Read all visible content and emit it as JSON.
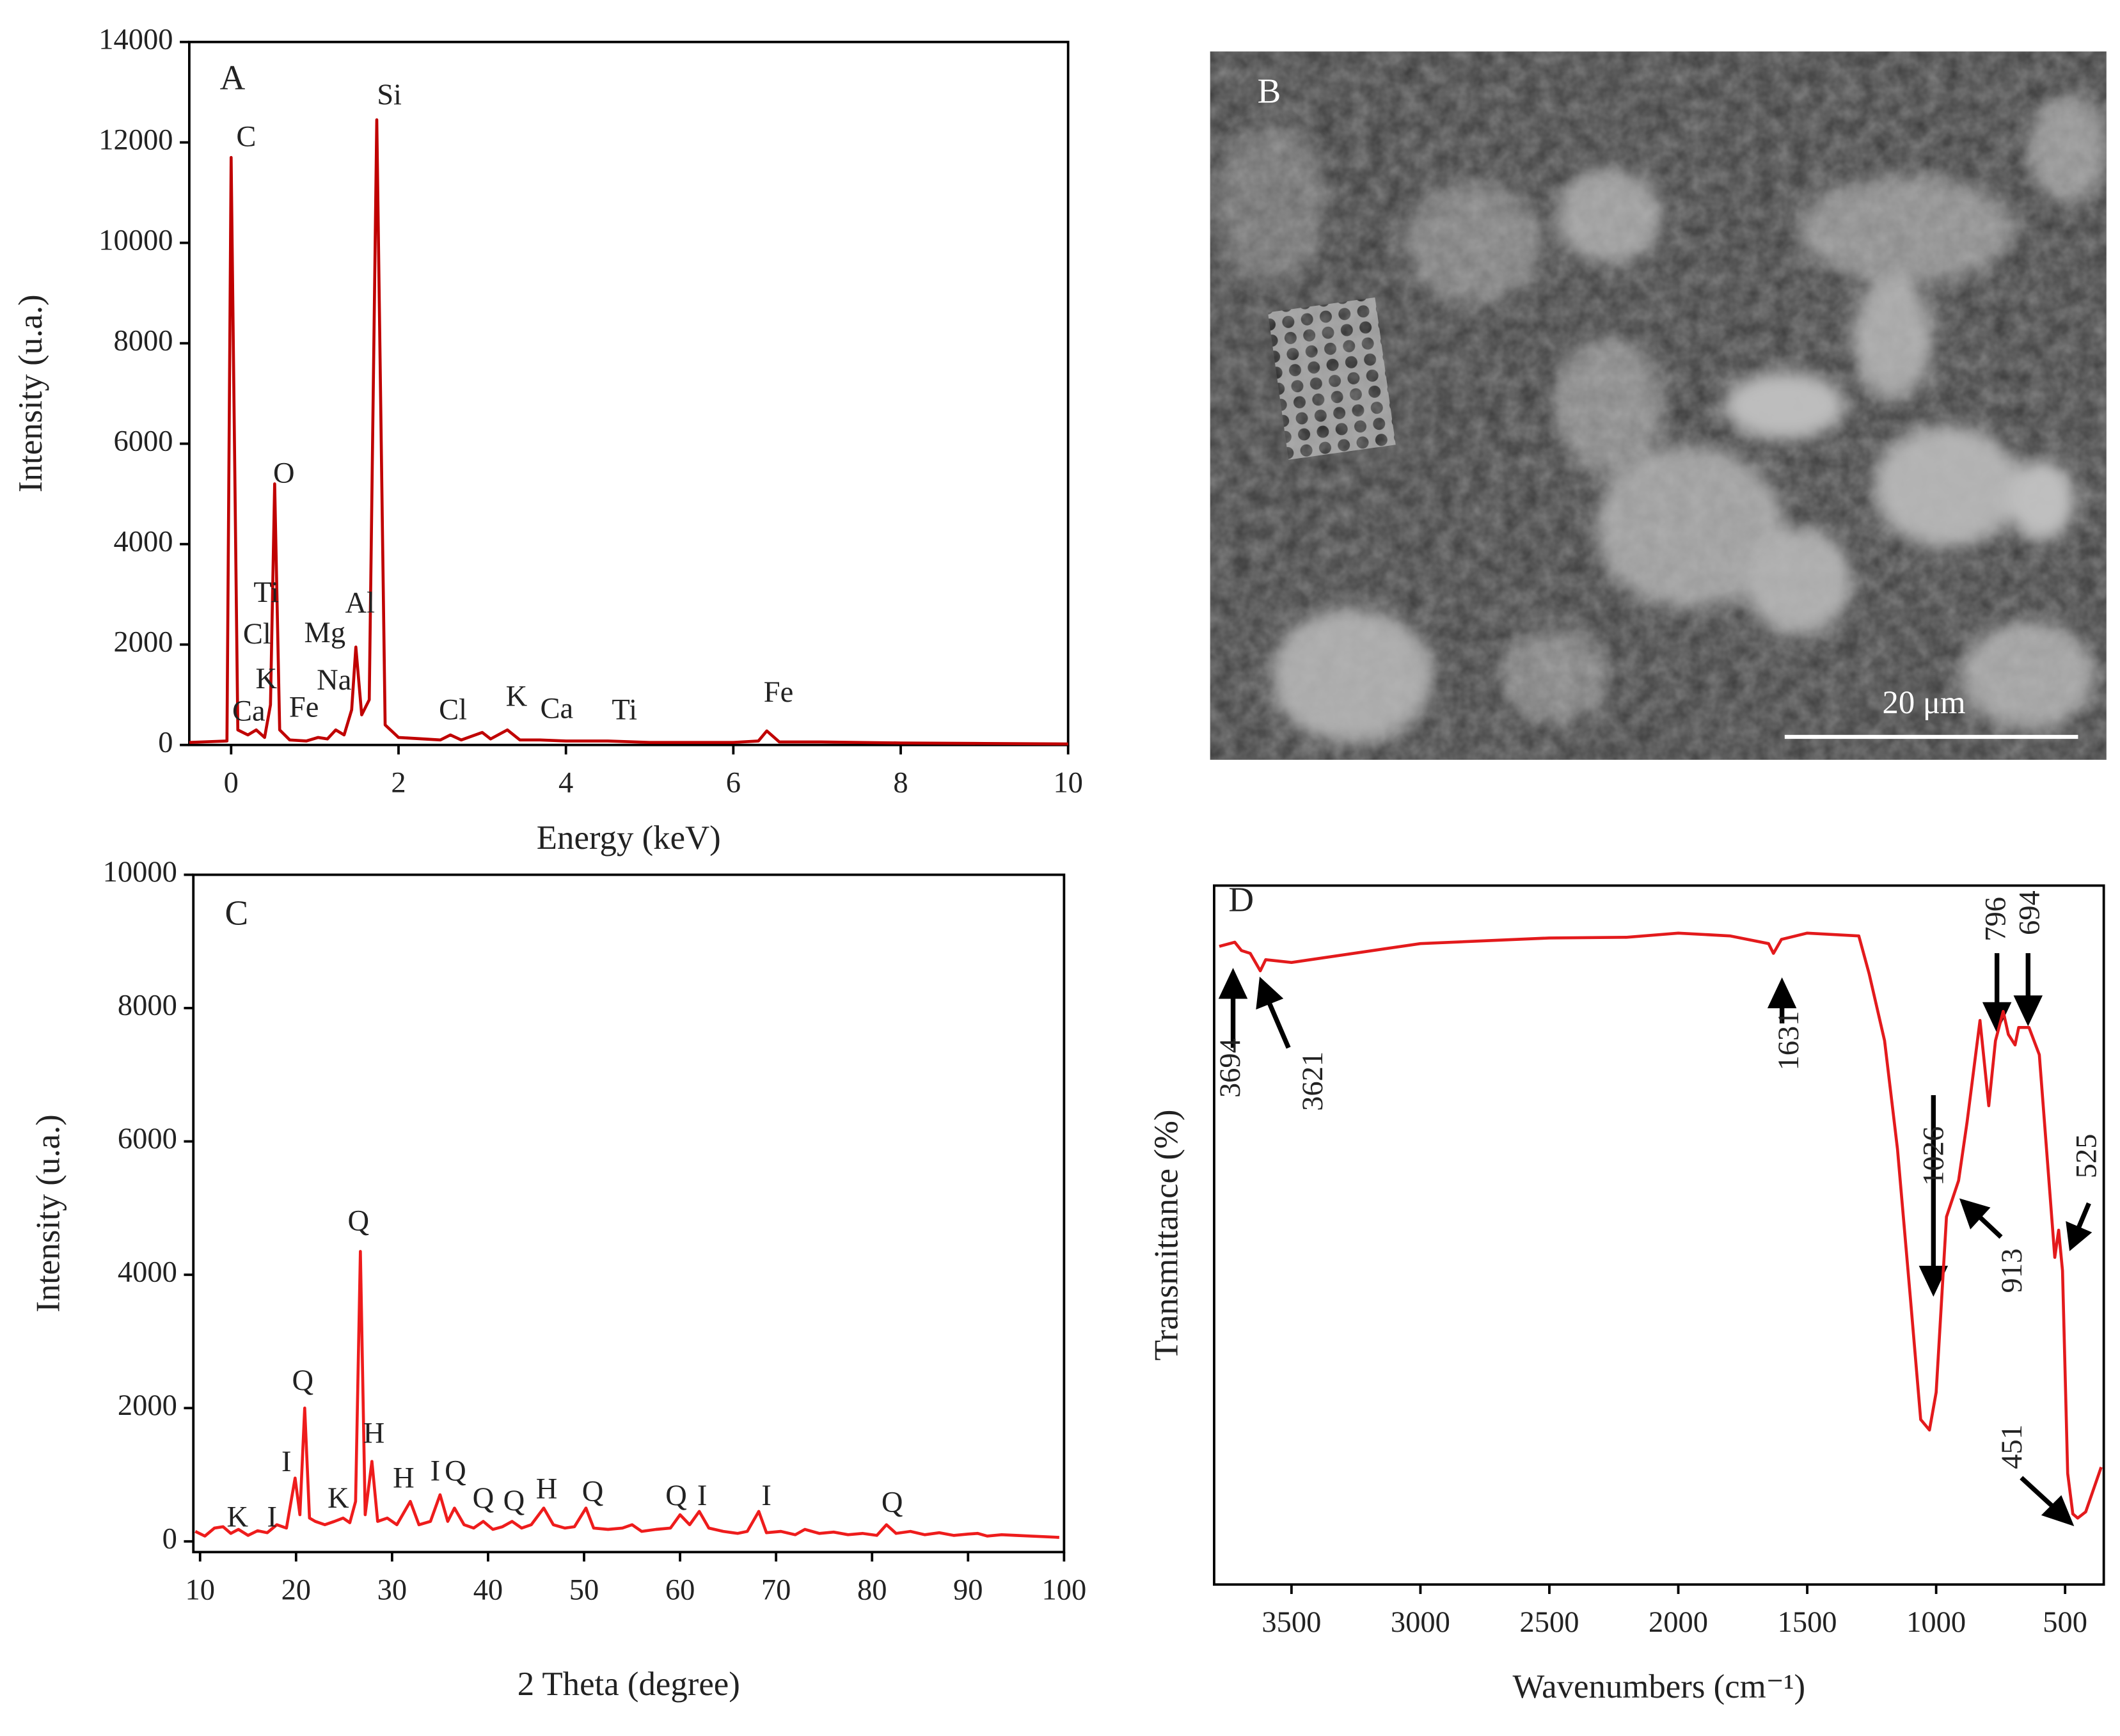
{
  "chart_data": [
    {
      "type": "line",
      "label": "A",
      "xlabel": "Energy (keV)",
      "ylabel": "Intensity (u.a.)",
      "color": "#c00000",
      "xlim": [
        -0.5,
        10
      ],
      "ylim": [
        0,
        14000
      ],
      "xticks": [
        0,
        2,
        4,
        6,
        8,
        10
      ],
      "yticks": [
        0,
        2000,
        4000,
        6000,
        8000,
        10000,
        12000,
        14000
      ],
      "x": [
        -0.5,
        -0.05,
        0,
        0.08,
        0.2,
        0.3,
        0.4,
        0.47,
        0.52,
        0.58,
        0.7,
        0.9,
        1.04,
        1.15,
        1.25,
        1.35,
        1.44,
        1.49,
        1.56,
        1.65,
        1.74,
        1.84,
        2.0,
        2.3,
        2.5,
        2.62,
        2.75,
        3.0,
        3.1,
        3.3,
        3.45,
        3.69,
        4.0,
        4.5,
        5.0,
        6.0,
        6.3,
        6.4,
        6.55,
        7.05,
        8,
        9,
        10
      ],
      "values": [
        50,
        80,
        11700,
        300,
        200,
        300,
        150,
        800,
        5200,
        300,
        100,
        80,
        150,
        120,
        300,
        200,
        700,
        1950,
        600,
        900,
        12450,
        400,
        150,
        120,
        100,
        200,
        100,
        250,
        120,
        300,
        100,
        100,
        80,
        80,
        50,
        50,
        80,
        280,
        60,
        60,
        40,
        30,
        20
      ],
      "annotations": [
        {
          "text": "C",
          "x": 0.18,
          "y": 12060
        },
        {
          "text": "Si",
          "x": 1.89,
          "y": 12896
        },
        {
          "text": "O",
          "x": 0.63,
          "y": 5358
        },
        {
          "text": "Ti",
          "x": 0.42,
          "y": 2988
        },
        {
          "text": "Cl",
          "x": 0.31,
          "y": 2154
        },
        {
          "text": "K",
          "x": 0.42,
          "y": 1265
        },
        {
          "text": "Ca",
          "x": 0.21,
          "y": 619
        },
        {
          "text": "Mg",
          "x": 1.12,
          "y": 2181
        },
        {
          "text": "Al",
          "x": 1.54,
          "y": 2773
        },
        {
          "text": "Na",
          "x": 1.23,
          "y": 1238
        },
        {
          "text": "Fe",
          "x": 0.87,
          "y": 700
        },
        {
          "text": "Cl",
          "x": 2.65,
          "y": 646
        },
        {
          "text": "K",
          "x": 3.41,
          "y": 915
        },
        {
          "text": "Ca",
          "x": 3.89,
          "y": 673
        },
        {
          "text": "Ti",
          "x": 4.7,
          "y": 646
        },
        {
          "text": "Fe",
          "x": 6.54,
          "y": 996
        }
      ]
    },
    {
      "type": "line",
      "label": "C",
      "xlabel": "2 Theta (degree)",
      "ylabel": "Intensity (u.a.)",
      "color": "#ee1c1c",
      "xlim": [
        9.3,
        100
      ],
      "ylim": [
        -160,
        10000
      ],
      "xticks": [
        10,
        20,
        30,
        40,
        50,
        60,
        70,
        80,
        90,
        100
      ],
      "yticks": [
        0,
        2000,
        4000,
        6000,
        8000,
        10000
      ],
      "x": [
        9.5,
        10.5,
        11.5,
        12.4,
        13.2,
        14,
        15,
        16,
        17,
        18,
        19,
        19.9,
        20.4,
        20.9,
        21.4,
        22,
        23,
        24,
        24.9,
        25.6,
        26.2,
        26.7,
        27.2,
        27.9,
        28.5,
        29.5,
        30.5,
        31.9,
        32.8,
        34,
        35,
        35.8,
        36.5,
        37.5,
        38.5,
        39.5,
        40.5,
        41.5,
        42.5,
        43.5,
        44.5,
        45.8,
        46.8,
        48,
        49,
        50.2,
        51,
        52.5,
        54,
        55,
        56,
        57.5,
        59,
        60,
        61,
        62,
        63,
        64.5,
        66,
        67,
        68.2,
        69,
        70.5,
        72,
        73,
        74.5,
        76,
        77.5,
        79,
        80.5,
        81.5,
        82.5,
        84,
        85.5,
        87,
        88.5,
        90,
        91,
        92,
        93.5,
        95,
        96.5,
        98,
        99.5
      ],
      "values": [
        150,
        80,
        200,
        220,
        120,
        180,
        90,
        160,
        130,
        250,
        200,
        950,
        400,
        2000,
        350,
        300,
        250,
        300,
        350,
        280,
        600,
        4350,
        400,
        1200,
        300,
        350,
        250,
        600,
        250,
        300,
        700,
        300,
        500,
        250,
        200,
        300,
        180,
        220,
        300,
        200,
        250,
        500,
        250,
        200,
        220,
        500,
        200,
        180,
        200,
        250,
        150,
        180,
        200,
        400,
        250,
        450,
        200,
        150,
        120,
        150,
        450,
        130,
        150,
        100,
        180,
        120,
        140,
        100,
        120,
        90,
        250,
        120,
        150,
        100,
        130,
        90,
        110,
        120,
        80,
        100,
        90,
        80,
        70,
        60
      ],
      "annotations": [
        {
          "text": "K",
          "x": 13.9,
          "y": 325
        },
        {
          "text": "I",
          "x": 17.5,
          "y": 325
        },
        {
          "text": "I",
          "x": 19.0,
          "y": 1156
        },
        {
          "text": "Q",
          "x": 20.7,
          "y": 2373
        },
        {
          "text": "K",
          "x": 24.4,
          "y": 608
        },
        {
          "text": "Q",
          "x": 26.5,
          "y": 4767
        },
        {
          "text": "H",
          "x": 28.1,
          "y": 1582
        },
        {
          "text": "H",
          "x": 31.2,
          "y": 913
        },
        {
          "text": "I",
          "x": 34.5,
          "y": 1014
        },
        {
          "text": "Q",
          "x": 36.6,
          "y": 1014
        },
        {
          "text": "Q",
          "x": 39.5,
          "y": 608
        },
        {
          "text": "Q",
          "x": 42.7,
          "y": 568
        },
        {
          "text": "H",
          "x": 46.1,
          "y": 750
        },
        {
          "text": "Q",
          "x": 50.9,
          "y": 710
        },
        {
          "text": "Q",
          "x": 59.6,
          "y": 649
        },
        {
          "text": "I",
          "x": 62.3,
          "y": 649
        },
        {
          "text": "I",
          "x": 69.0,
          "y": 649
        },
        {
          "text": "Q",
          "x": 82.1,
          "y": 548
        }
      ]
    },
    {
      "type": "line",
      "label": "D",
      "xlabel": "Wavenumbers (cm⁻¹)",
      "ylabel": "Transmittance (%)",
      "color": "#e31a1c",
      "xlim": [
        3800,
        350
      ],
      "ylim": [
        0,
        100
      ],
      "xticks": [
        3500,
        3000,
        2500,
        2000,
        1500,
        1000,
        500
      ],
      "x": [
        3780,
        3720,
        3694,
        3660,
        3621,
        3600,
        3500,
        3000,
        2500,
        2200,
        2000,
        1800,
        1650,
        1631,
        1600,
        1500,
        1300,
        1260,
        1200,
        1150,
        1100,
        1060,
        1026,
        1000,
        960,
        913,
        880,
        830,
        796,
        770,
        740,
        720,
        694,
        680,
        640,
        600,
        560,
        540,
        525,
        510,
        490,
        470,
        451,
        420,
        360
      ],
      "values": [
        91.3,
        91.9,
        90.7,
        90.3,
        87.8,
        89.4,
        89.0,
        91.7,
        92.5,
        92.6,
        93.2,
        92.8,
        91.7,
        90.3,
        92.3,
        93.2,
        92.8,
        87.4,
        77.8,
        62.3,
        41.0,
        23.6,
        22.1,
        27.5,
        52.6,
        57.8,
        66.2,
        80.7,
        68.5,
        77.8,
        82.0,
        78.7,
        77.2,
        79.7,
        79.7,
        75.8,
        56.5,
        46.8,
        50.7,
        44.9,
        15.9,
        10.1,
        9.5,
        10.4,
        16.8
      ],
      "annotations": [
        {
          "text": "3694",
          "x": 3727,
          "y": 73.9
        },
        {
          "text": "3621",
          "x": 3407,
          "y": 72.0
        },
        {
          "text": "1631",
          "x": 1561,
          "y": 77.8
        },
        {
          "text": "1026",
          "x": 1000,
          "y": 61.3
        },
        {
          "text": "796",
          "x": 759,
          "y": 95.2
        },
        {
          "text": "694",
          "x": 627,
          "y": 96.1
        },
        {
          "text": "913",
          "x": 696,
          "y": 44.9
        },
        {
          "text": "525",
          "x": 407,
          "y": 61.3
        },
        {
          "text": "451",
          "x": 696,
          "y": 19.7
        }
      ]
    }
  ],
  "panel_b": {
    "label": "B",
    "scale_bar": "20 μm"
  }
}
